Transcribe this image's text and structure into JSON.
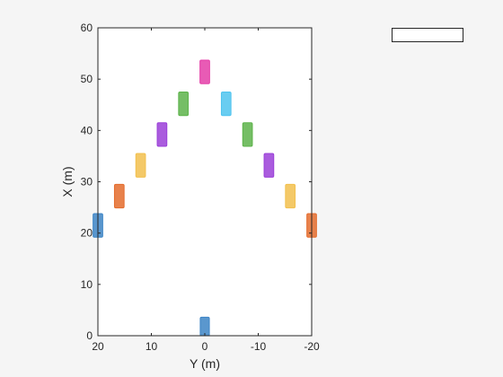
{
  "chart_data": {
    "type": "scatter",
    "title": "",
    "xlabel": "Y (m)",
    "ylabel": "X (m)",
    "xlim": [
      20,
      -20
    ],
    "ylim": [
      0,
      60
    ],
    "x_reversed": true,
    "x_ticks": [
      20,
      10,
      0,
      -10,
      -20
    ],
    "x_tick_labels": [
      "20",
      "10",
      "0",
      "-10",
      "-20"
    ],
    "y_ticks": [
      0,
      10,
      20,
      30,
      40,
      50,
      60
    ],
    "y_tick_labels": [
      "0",
      "10",
      "20",
      "30",
      "40",
      "50",
      "60"
    ],
    "grid": false,
    "legend": {
      "placement": "top-right",
      "entries": []
    },
    "vehicles": [
      {
        "y": 0,
        "x": 1.8,
        "length": 3.6,
        "width": 1.7,
        "color": "#3d85c6"
      },
      {
        "y": 20,
        "x": 21.5,
        "length": 4.6,
        "width": 1.8,
        "color": "#3d85c6"
      },
      {
        "y": -20,
        "x": 21.5,
        "length": 4.6,
        "width": 1.8,
        "color": "#e46c2d"
      },
      {
        "y": 16,
        "x": 27.2,
        "length": 4.6,
        "width": 1.8,
        "color": "#e46c2d"
      },
      {
        "y": -16,
        "x": 27.2,
        "length": 4.6,
        "width": 1.8,
        "color": "#f2c04e"
      },
      {
        "y": 12,
        "x": 33.2,
        "length": 4.6,
        "width": 1.8,
        "color": "#f2c04e"
      },
      {
        "y": -12,
        "x": 33.2,
        "length": 4.6,
        "width": 1.8,
        "color": "#9b40d8"
      },
      {
        "y": 8,
        "x": 39.2,
        "length": 4.6,
        "width": 1.8,
        "color": "#9b40d8"
      },
      {
        "y": -8,
        "x": 39.2,
        "length": 4.6,
        "width": 1.8,
        "color": "#5db34a"
      },
      {
        "y": 4,
        "x": 45.2,
        "length": 4.6,
        "width": 1.8,
        "color": "#5db34a"
      },
      {
        "y": -4,
        "x": 45.2,
        "length": 4.6,
        "width": 1.8,
        "color": "#4fc4ef"
      },
      {
        "y": 0,
        "x": 51.4,
        "length": 4.6,
        "width": 1.8,
        "color": "#e43ea8"
      }
    ]
  }
}
